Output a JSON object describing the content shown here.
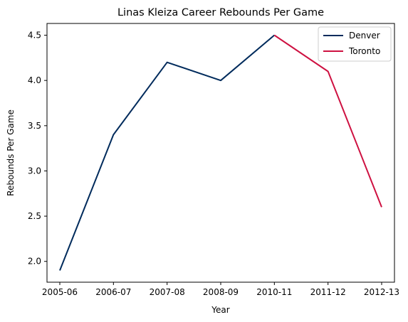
{
  "chart_data": {
    "type": "line",
    "title": "Linas Kleiza Career Rebounds Per Game",
    "xlabel": "Year",
    "ylabel": "Rebounds Per Game",
    "categories": [
      "2005-06",
      "2006-07",
      "2007-08",
      "2008-09",
      "2010-11",
      "2011-12",
      "2012-13"
    ],
    "series": [
      {
        "name": "Denver",
        "color": "#002B5C",
        "points": [
          {
            "x": "2005-06",
            "y": 1.9
          },
          {
            "x": "2006-07",
            "y": 3.4
          },
          {
            "x": "2007-08",
            "y": 4.2
          },
          {
            "x": "2008-09",
            "y": 4.0
          },
          {
            "x": "2010-11",
            "y": 4.5
          }
        ]
      },
      {
        "name": "Toronto",
        "color": "#CE1141",
        "points": [
          {
            "x": "2010-11",
            "y": 4.5
          },
          {
            "x": "2011-12",
            "y": 4.1
          },
          {
            "x": "2012-13",
            "y": 2.6
          }
        ]
      }
    ],
    "ylim": [
      1.77,
      4.63
    ],
    "yticks": [
      2.0,
      2.5,
      3.0,
      3.5,
      4.0,
      4.5
    ],
    "ytick_labels": [
      "2.0",
      "2.5",
      "3.0",
      "3.5",
      "4.0",
      "4.5"
    ],
    "grid": false,
    "legend": "top-right"
  }
}
